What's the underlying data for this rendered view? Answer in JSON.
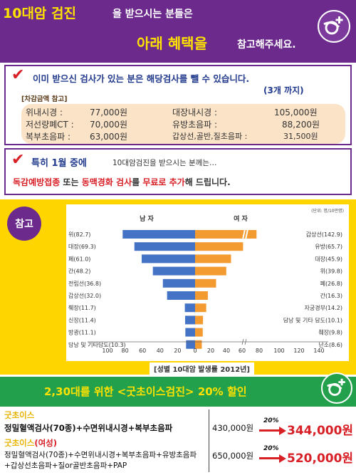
{
  "header": {
    "title_highlight": "10대암 검진",
    "title_rest": "을 받으시는 분들은",
    "line2_highlight": "아래 혜택을",
    "line2_rest": "참고해주세요."
  },
  "panel1": {
    "title": "이미 받으신 검사가 있는 분은  해당검사를 뺄 수 있습니다.",
    "subtitle": "(3개 까지)",
    "ref_label": "[차감금액 참고]",
    "items": [
      {
        "name": "위내시경 :",
        "price": "77,000원"
      },
      {
        "name": "저선량폐CT :",
        "price": "70,000원"
      },
      {
        "name": "복부초음파 :",
        "price": "63,000원"
      },
      {
        "name": "대장내시경 :",
        "price": "105,000원"
      },
      {
        "name": "유방초음파 :",
        "price": "88,200원"
      },
      {
        "name": "갑상선,골반,질초음파 :",
        "price": "31,500원"
      }
    ]
  },
  "panel2": {
    "title": "특히 1월 중에",
    "title_sub": "10대암검진을 받으시는 분께는…",
    "offer_a": "독감예방접종",
    "offer_join": " 또는 ",
    "offer_b": "동맥경화 검사",
    "offer_c": "를 ",
    "offer_d": "무료로 추가",
    "offer_e": "해 드립니다."
  },
  "reference": {
    "badge": "참고",
    "caption": "[성별 10대암 발생률 2012년]"
  },
  "chart_data": {
    "type": "bar",
    "unit_note": "(단위: 명/10만명)",
    "male_label": "남 자",
    "female_label": "여 자",
    "x_ticks": [
      "100",
      "80",
      "60",
      "40",
      "20",
      "0",
      "20",
      "40",
      "60",
      "80",
      "100",
      "120",
      "140"
    ],
    "xlim": [
      -100,
      140
    ],
    "axis_break": true,
    "male": {
      "color": "#4472c4",
      "categories": [
        "위(82.7)",
        "대장(69.3)",
        "폐(61.0)",
        "간(48.2)",
        "전립선(36.8)",
        "갑상선(32.0)",
        "췌장(11.7)",
        "신장(11.4)",
        "방광(11.1)",
        "담낭 및 기타담도(10.3)"
      ],
      "values": [
        82.7,
        69.3,
        61.0,
        48.2,
        36.8,
        32.0,
        11.7,
        11.4,
        11.1,
        10.3
      ]
    },
    "female": {
      "color": "#f39a31",
      "categories": [
        "갑상선(142.9)",
        "유방(65.7)",
        "대장(45.9)",
        "위(39.8)",
        "폐(26.8)",
        "간(16.3)",
        "자궁경부(14.2)",
        "담낭 및 기타 담도(10.1)",
        "췌장(9.8)",
        "난소(8.6)"
      ],
      "values": [
        142.9,
        65.7,
        45.9,
        39.8,
        26.8,
        16.3,
        14.2,
        10.1,
        9.8,
        8.6
      ]
    }
  },
  "promo": {
    "title": "2,30대를 위한 <굿초이스검진> 20% 할인",
    "rows": [
      {
        "name": "굿초이스",
        "name_extra": "",
        "desc": [
          "정밀혈액검사(70종)+수면위내시경+복부초음파"
        ],
        "price": "430,000원",
        "pct": "20%",
        "new_price": "344,000원"
      },
      {
        "name": "굿초이스",
        "name_extra": "(여성)",
        "desc": [
          "정밀혈액검사(70종)+수면위내시경+복부초음파+유방초음파",
          "+갑상선초음파+질or골반초음파+PAP"
        ],
        "price": "650,000원",
        "pct": "20%",
        "new_price": "520,000원"
      }
    ]
  }
}
